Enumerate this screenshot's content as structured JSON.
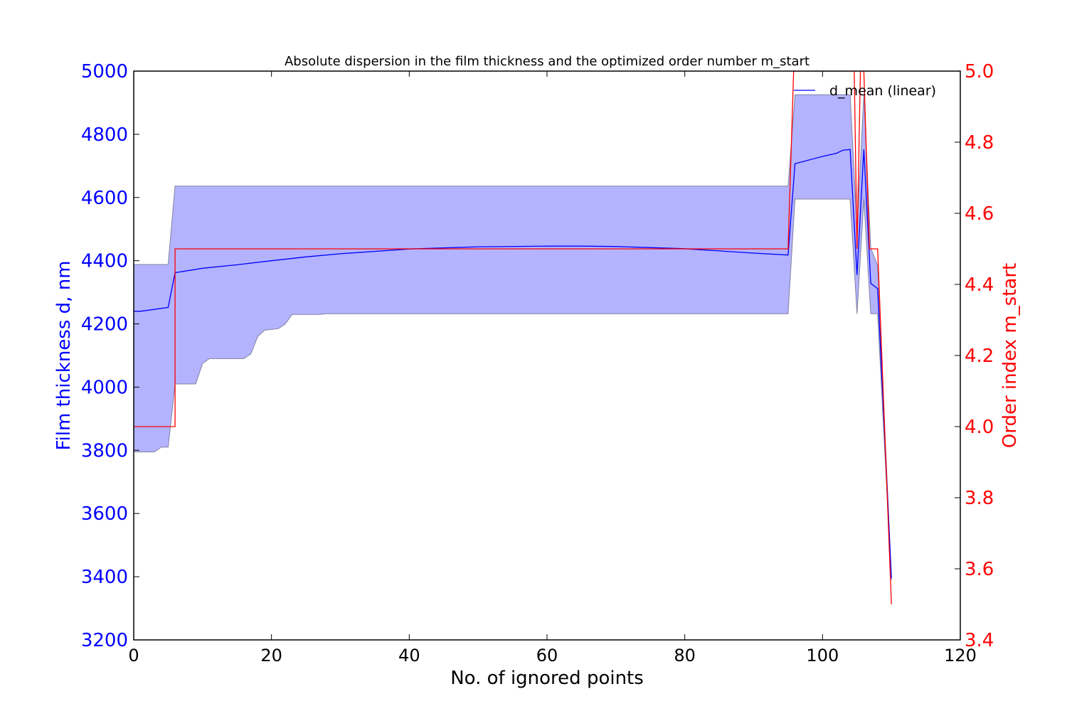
{
  "chart_data": {
    "type": "line",
    "title": "Absolute dispersion in the film thickness and the optimized order number m_start",
    "xlabel": "No. of ignored points",
    "ylabel_left": "Film thickness d, nm",
    "ylabel_right": "Order index m_start",
    "xlim": [
      0,
      120
    ],
    "ylim_left": [
      3200,
      5000
    ],
    "ylim_right": [
      3.4,
      5.0
    ],
    "xticks": [
      "0",
      "20",
      "40",
      "60",
      "80",
      "100",
      "120"
    ],
    "yticks_left": [
      "3200",
      "3400",
      "3600",
      "3800",
      "4000",
      "4200",
      "4400",
      "4600",
      "4800",
      "5000"
    ],
    "yticks_right": [
      "3.4",
      "3.6",
      "3.8",
      "4.0",
      "4.2",
      "4.4",
      "4.6",
      "4.8",
      "5.0"
    ],
    "legend": {
      "position": "top-right",
      "entries": [
        "d_mean (linear)"
      ]
    },
    "colors": {
      "d_mean": "#0000ff",
      "band_fill": "#b3b3ff",
      "band_edge": "#8080a0",
      "m_start": "#ff0000",
      "left_axis": "#0000ff",
      "right_axis": "#ff0000"
    },
    "band": {
      "name": "d dispersion",
      "x": [
        0,
        3,
        4,
        5,
        6,
        9,
        10,
        11,
        16,
        17,
        18,
        19,
        21,
        22,
        23,
        27,
        28,
        95,
        96,
        104,
        105,
        106,
        107,
        108,
        110
      ],
      "upper": [
        4388,
        4388,
        4388,
        4388,
        4636,
        4636,
        4636,
        4636,
        4636,
        4636,
        4636,
        4636,
        4636,
        4636,
        4636,
        4636,
        4636,
        4636,
        4925,
        4925,
        4500,
        4925,
        4440,
        4385,
        3390
      ],
      "lower": [
        3795,
        3795,
        3810,
        3810,
        4010,
        4010,
        4075,
        4090,
        4090,
        4105,
        4160,
        4180,
        4185,
        4200,
        4230,
        4230,
        4232,
        4232,
        4595,
        4595,
        4232,
        4595,
        4232,
        4232,
        3390
      ]
    },
    "series": [
      {
        "name": "d_mean (linear)",
        "axis": "left",
        "x": [
          0,
          1,
          5,
          6,
          10,
          15,
          20,
          25,
          30,
          40,
          50,
          60,
          65,
          70,
          80,
          90,
          95,
          96,
          100,
          102,
          103,
          104,
          105,
          106,
          107,
          108,
          110
        ],
        "values": [
          4240,
          4240,
          4252,
          4362,
          4376,
          4387,
          4400,
          4412,
          4422,
          4437,
          4444,
          4446,
          4446,
          4445,
          4438,
          4424,
          4418,
          4707,
          4730,
          4740,
          4750,
          4752,
          4355,
          4752,
          4328,
          4312,
          3395
        ]
      },
      {
        "name": "m_start",
        "axis": "right",
        "x": [
          0,
          5,
          5,
          6,
          6,
          95,
          95.8,
          104,
          104.6,
          105,
          105.5,
          106,
          106.8,
          107,
          107,
          108,
          108,
          110
        ],
        "values": [
          4,
          4,
          4,
          4,
          4.5,
          4.5,
          5.0,
          5.0,
          5.0,
          4.5,
          5.0,
          5.0,
          4.5,
          4.5,
          4.5,
          4.5,
          4.5,
          3.5
        ]
      }
    ]
  }
}
